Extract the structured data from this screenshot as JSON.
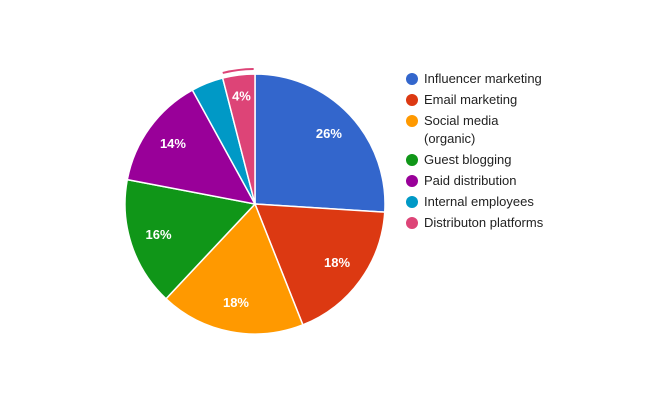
{
  "chart_data": {
    "type": "pie",
    "categories": [
      "Influencer marketing",
      "Email marketing",
      "Social media (organic)",
      "Guest blogging",
      "Paid distribution",
      "Internal employees",
      "Distributon platforms"
    ],
    "values": [
      26,
      18,
      18,
      16,
      14,
      4,
      4
    ],
    "value_labels": [
      "26%",
      "18%",
      "18%",
      "16%",
      "14%",
      null,
      "4%"
    ],
    "colors": [
      "#3366cc",
      "#dc3912",
      "#ff9900",
      "#109618",
      "#990099",
      "#0099c6",
      "#dd4477"
    ],
    "legend": "right"
  }
}
